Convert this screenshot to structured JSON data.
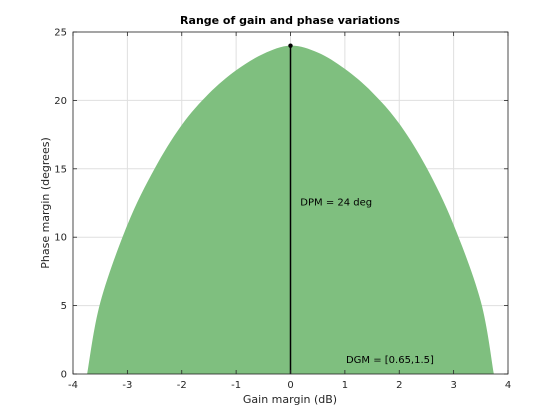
{
  "chart_data": {
    "type": "area",
    "title": "Range of gain and phase variations",
    "xlabel": "Gain margin (dB)",
    "ylabel": "Phase margin (degrees)",
    "xlim": [
      -4,
      4
    ],
    "ylim": [
      0,
      25
    ],
    "xticks": [
      -4,
      -3,
      -2,
      -1,
      0,
      1,
      2,
      3,
      4
    ],
    "yticks": [
      0,
      5,
      10,
      15,
      20,
      25
    ],
    "grid": true,
    "region": {
      "x": [
        -3.74,
        -3.5,
        -3,
        -2.5,
        -2,
        -1.5,
        -1,
        -0.5,
        0,
        0.5,
        1,
        1.5,
        2,
        2.5,
        3,
        3.5,
        3.74
      ],
      "y": [
        0,
        5.2,
        10.9,
        15.0,
        18.2,
        20.5,
        22.2,
        23.4,
        24.0,
        23.5,
        22.3,
        20.6,
        18.3,
        15.1,
        10.9,
        5.3,
        0
      ],
      "color": "#7fbf7f"
    },
    "marker_line": {
      "x": 0,
      "y0": 0,
      "y1": 24
    },
    "marker_point": {
      "x": 0,
      "y": 24
    },
    "annotations": [
      {
        "text": "DPM = 24 deg",
        "x": 0.18,
        "y": 12.3
      },
      {
        "text": "DGM = [0.65,1.5]",
        "x": 1.02,
        "y": 0.8
      }
    ]
  }
}
